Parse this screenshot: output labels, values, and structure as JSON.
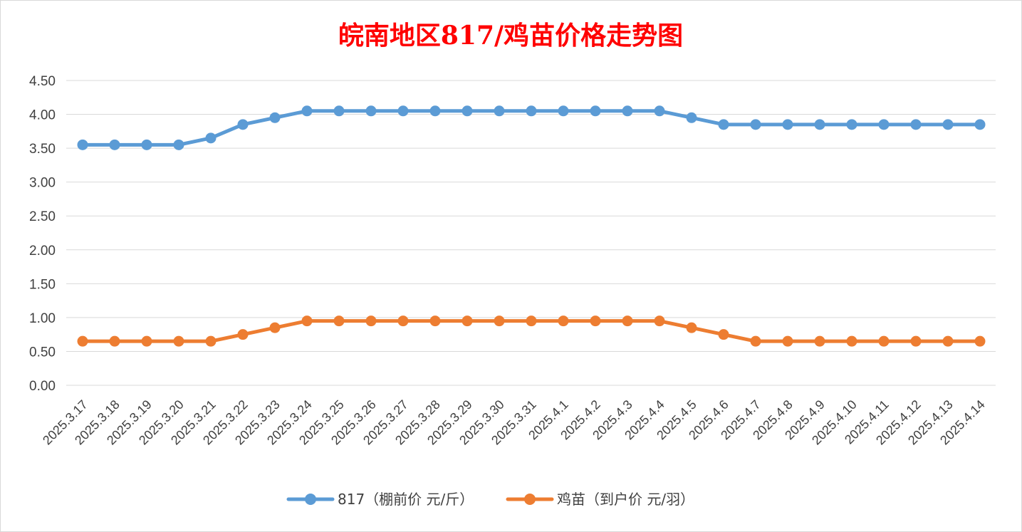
{
  "chart_data": {
    "type": "line",
    "title": "皖南地区817/鸡苗价格走势图",
    "title_color": "#ff0000",
    "categories": [
      "2025.3.17",
      "2025.3.18",
      "2025.3.19",
      "2025.3.20",
      "2025.3.21",
      "2025.3.22",
      "2025.3.23",
      "2025.3.24",
      "2025.3.25",
      "2025.3.26",
      "2025.3.27",
      "2025.3.28",
      "2025.3.29",
      "2025.3.30",
      "2025.3.31",
      "2025.4.1",
      "2025.4.2",
      "2025.4.3",
      "2025.4.4",
      "2025.4.5",
      "2025.4.6",
      "2025.4.7",
      "2025.4.8",
      "2025.4.9",
      "2025.4.10",
      "2025.4.11",
      "2025.4.12",
      "2025.4.13",
      "2025.4.14"
    ],
    "series": [
      {
        "name": "817（棚前价 元/斤）",
        "color": "#5b9bd5",
        "values": [
          3.55,
          3.55,
          3.55,
          3.55,
          3.65,
          3.85,
          3.95,
          4.05,
          4.05,
          4.05,
          4.05,
          4.05,
          4.05,
          4.05,
          4.05,
          4.05,
          4.05,
          4.05,
          4.05,
          3.95,
          3.85,
          3.85,
          3.85,
          3.85,
          3.85,
          3.85,
          3.85,
          3.85,
          3.85
        ]
      },
      {
        "name": "鸡苗（到户价 元/羽）",
        "color": "#ed7d31",
        "values": [
          0.65,
          0.65,
          0.65,
          0.65,
          0.65,
          0.75,
          0.85,
          0.95,
          0.95,
          0.95,
          0.95,
          0.95,
          0.95,
          0.95,
          0.95,
          0.95,
          0.95,
          0.95,
          0.95,
          0.85,
          0.75,
          0.65,
          0.65,
          0.65,
          0.65,
          0.65,
          0.65,
          0.65,
          0.65
        ]
      }
    ],
    "ylim": [
      0,
      4.5
    ],
    "yticks": [
      "0.00",
      "0.50",
      "1.00",
      "1.50",
      "2.00",
      "2.50",
      "3.00",
      "3.50",
      "4.00",
      "4.50"
    ],
    "xlabel": "",
    "ylabel": "",
    "grid": true,
    "legend_position": "bottom"
  }
}
